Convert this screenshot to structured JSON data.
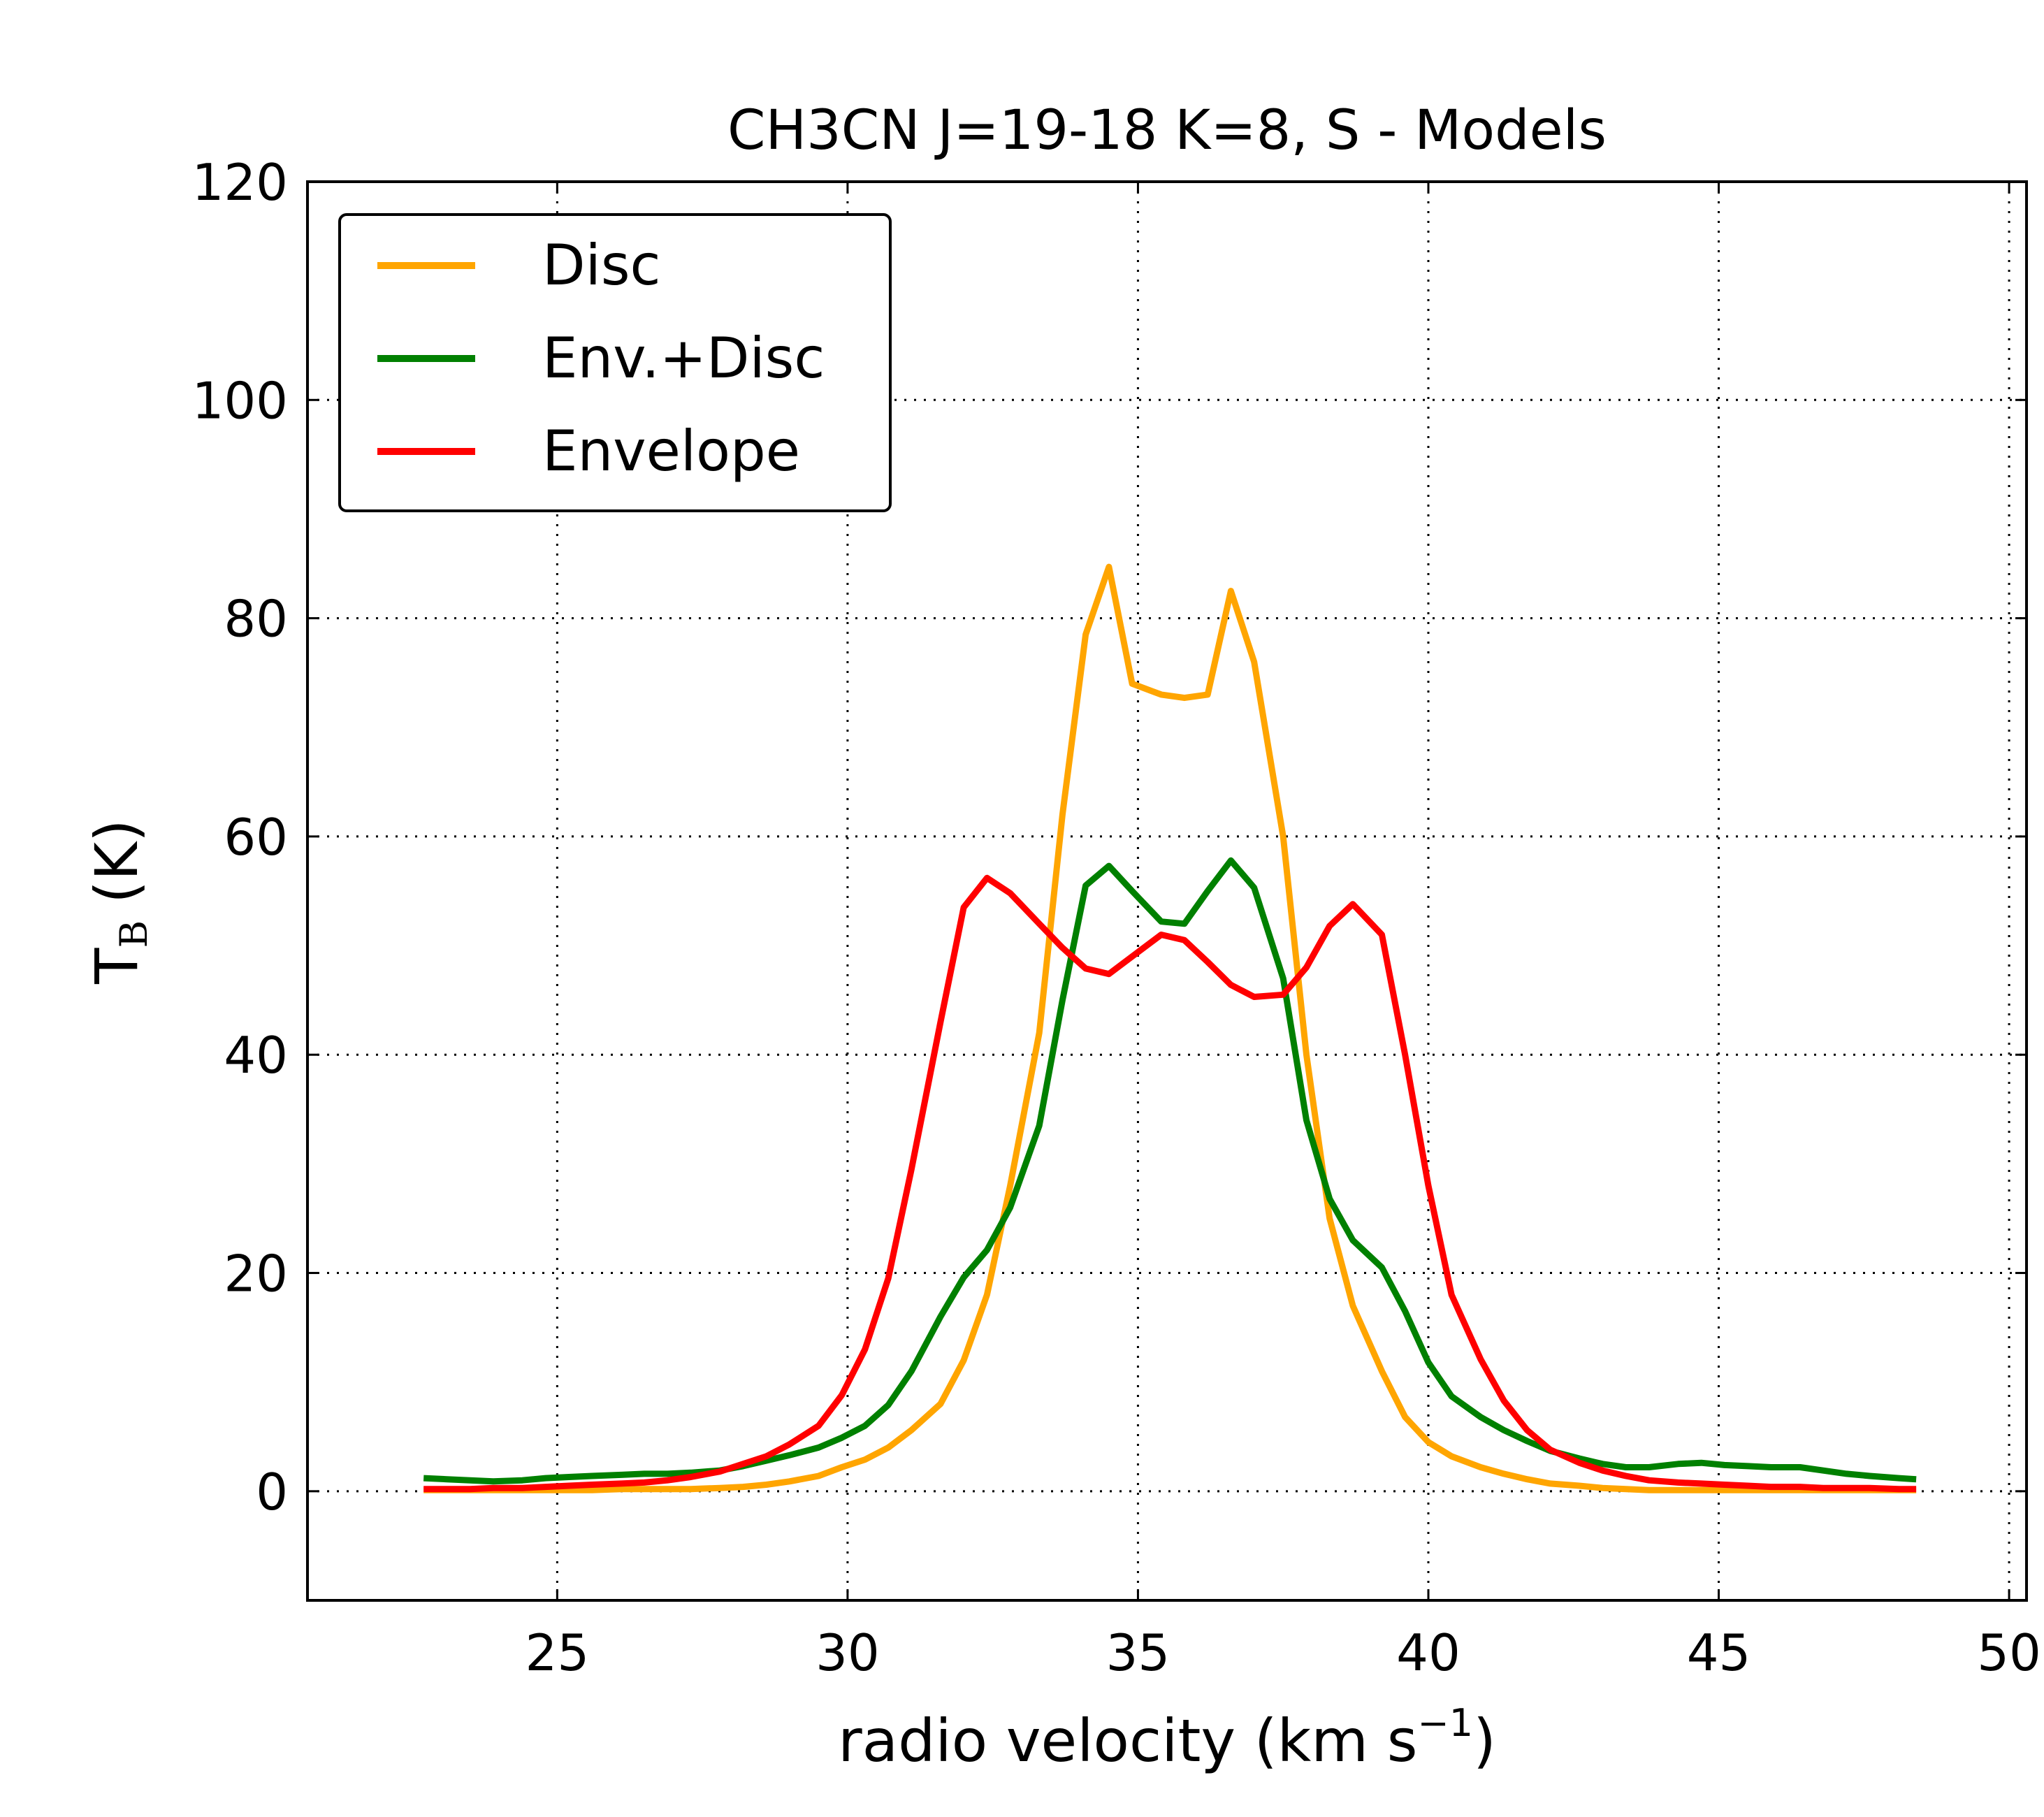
{
  "chart_data": {
    "type": "line",
    "title": "CH3CN J=19-18 K=8, S - Models",
    "xlabel": "radio velocity (km s",
    "xlabel_sup": "−1",
    "xlabel_close": ")",
    "ylabel": "T",
    "ylabel_sub": "B",
    "ylabel_unit": "(K)",
    "xlim": [
      20.7,
      50.3
    ],
    "ylim": [
      -10,
      120
    ],
    "xticks": [
      25,
      30,
      35,
      40,
      45,
      50
    ],
    "yticks": [
      0,
      20,
      40,
      60,
      80,
      100,
      120
    ],
    "grid": true,
    "legend_position": "top-left",
    "series": [
      {
        "name": "Disc",
        "color": "#FFA500",
        "x": [
          22.7,
          23.1,
          23.5,
          23.9,
          24.4,
          24.8,
          25.2,
          25.6,
          26.1,
          26.5,
          26.9,
          27.3,
          27.8,
          28.2,
          28.6,
          29.0,
          29.5,
          29.9,
          30.3,
          30.7,
          31.1,
          31.6,
          32.0,
          32.4,
          32.8,
          33.3,
          33.7,
          34.1,
          34.5,
          34.9,
          35.4,
          35.8,
          36.2,
          36.6,
          37.0,
          37.5,
          37.9,
          38.3,
          38.7,
          39.2,
          39.6,
          40.0,
          40.4,
          40.9,
          41.3,
          41.7,
          42.1,
          42.6,
          43.0,
          43.4,
          43.8,
          44.3,
          44.7,
          45.1,
          45.5,
          45.9,
          46.4,
          46.8,
          47.2,
          47.6,
          48.1,
          48.4
        ],
        "y": [
          0.1,
          0.1,
          0.1,
          0.1,
          0.1,
          0.1,
          0.1,
          0.1,
          0.2,
          0.2,
          0.2,
          0.2,
          0.3,
          0.4,
          0.6,
          0.9,
          1.4,
          2.2,
          2.9,
          4.0,
          5.6,
          8.0,
          12.0,
          18.0,
          28.0,
          42.0,
          62.0,
          78.5,
          84.7,
          74.0,
          73.0,
          72.7,
          73.0,
          82.5,
          76.0,
          60.0,
          40.0,
          25.0,
          17.0,
          11.0,
          6.8,
          4.5,
          3.2,
          2.2,
          1.6,
          1.1,
          0.7,
          0.5,
          0.3,
          0.2,
          0.1,
          0.1,
          0.1,
          0.1,
          0.1,
          0.1,
          0.1,
          0.1,
          0.1,
          0.1,
          0.1,
          0.1
        ]
      },
      {
        "name": "Env.+Disc",
        "color": "#008000",
        "x": [
          22.7,
          23.1,
          23.5,
          23.9,
          24.4,
          24.8,
          25.2,
          25.6,
          26.1,
          26.5,
          26.9,
          27.3,
          27.8,
          28.2,
          28.6,
          29.0,
          29.5,
          29.9,
          30.3,
          30.7,
          31.1,
          31.6,
          32.0,
          32.4,
          32.8,
          33.3,
          33.7,
          34.1,
          34.5,
          34.9,
          35.4,
          35.8,
          36.2,
          36.6,
          37.0,
          37.5,
          37.9,
          38.3,
          38.7,
          39.2,
          39.6,
          40.0,
          40.4,
          40.9,
          41.3,
          41.7,
          42.1,
          42.6,
          43.0,
          43.4,
          43.8,
          44.3,
          44.7,
          45.1,
          45.5,
          45.9,
          46.4,
          46.8,
          47.2,
          47.6,
          48.1,
          48.4
        ],
        "y": [
          1.2,
          1.1,
          1.0,
          0.9,
          1.0,
          1.2,
          1.3,
          1.4,
          1.5,
          1.6,
          1.6,
          1.7,
          1.9,
          2.3,
          2.8,
          3.3,
          4.0,
          4.9,
          6.0,
          7.9,
          11.0,
          16.0,
          19.6,
          22.1,
          26.0,
          33.5,
          45.0,
          55.5,
          57.3,
          55.0,
          52.2,
          52.0,
          55.0,
          57.8,
          55.3,
          47.0,
          34.0,
          26.8,
          23.0,
          20.5,
          16.5,
          11.8,
          8.7,
          6.8,
          5.6,
          4.6,
          3.7,
          3.0,
          2.5,
          2.2,
          2.2,
          2.5,
          2.6,
          2.4,
          2.3,
          2.2,
          2.2,
          1.9,
          1.6,
          1.4,
          1.2,
          1.1
        ]
      },
      {
        "name": "Envelope",
        "color": "#FF0000",
        "x": [
          22.7,
          23.1,
          23.5,
          23.9,
          24.4,
          24.8,
          25.2,
          25.6,
          26.1,
          26.5,
          26.9,
          27.3,
          27.8,
          28.2,
          28.6,
          29.0,
          29.5,
          29.9,
          30.3,
          30.7,
          31.1,
          31.6,
          32.0,
          32.4,
          32.8,
          33.3,
          33.7,
          34.1,
          34.5,
          34.9,
          35.4,
          35.8,
          36.2,
          36.6,
          37.0,
          37.5,
          37.9,
          38.3,
          38.7,
          39.2,
          39.6,
          40.0,
          40.4,
          40.9,
          41.3,
          41.7,
          42.1,
          42.6,
          43.0,
          43.4,
          43.8,
          44.3,
          44.7,
          45.1,
          45.5,
          45.9,
          46.4,
          46.8,
          47.2,
          47.6,
          48.1,
          48.4
        ],
        "y": [
          0.2,
          0.2,
          0.2,
          0.3,
          0.3,
          0.4,
          0.5,
          0.6,
          0.7,
          0.8,
          1.0,
          1.3,
          1.8,
          2.5,
          3.2,
          4.3,
          6.0,
          8.8,
          13.0,
          19.5,
          29.5,
          43.0,
          53.5,
          56.2,
          54.8,
          52.0,
          49.8,
          47.9,
          47.4,
          49.0,
          51.0,
          50.5,
          48.5,
          46.4,
          45.3,
          45.5,
          48.0,
          51.8,
          53.8,
          51.0,
          40.0,
          28.0,
          18.0,
          12.1,
          8.3,
          5.6,
          3.8,
          2.6,
          1.9,
          1.4,
          1.0,
          0.8,
          0.7,
          0.6,
          0.5,
          0.4,
          0.4,
          0.3,
          0.3,
          0.3,
          0.2,
          0.2
        ]
      }
    ]
  }
}
